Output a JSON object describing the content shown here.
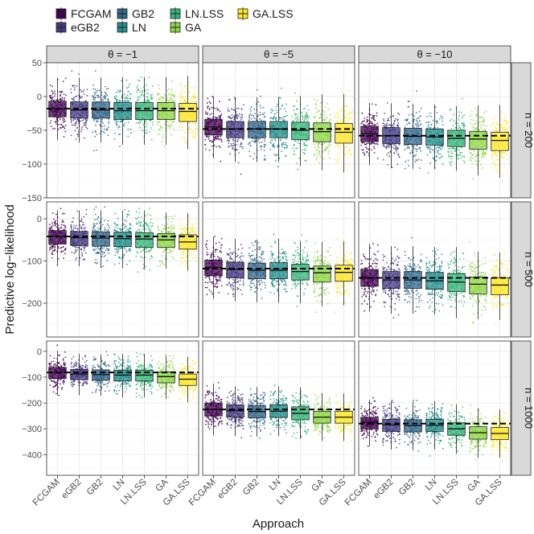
{
  "legend": {
    "items": [
      {
        "label": "FCGAM",
        "color": "#440154"
      },
      {
        "label": "eGB2",
        "color": "#443A83"
      },
      {
        "label": "GB2",
        "color": "#31688E"
      },
      {
        "label": "LN",
        "color": "#21908D"
      },
      {
        "label": "LN.LSS",
        "color": "#35B779"
      },
      {
        "label": "GA",
        "color": "#8FD744"
      },
      {
        "label": "GA.LSS",
        "color": "#FDE725"
      }
    ]
  },
  "chart_data": {
    "type": "box",
    "xlabel": "Approach",
    "ylabel": "Predictive log−likelihood",
    "categories": [
      "FCGAM",
      "eGB2",
      "GB2",
      "LN",
      "LN.LSS",
      "GA",
      "GA.LSS"
    ],
    "facet_columns": [
      "θ = −1",
      "θ = −5",
      "θ = −10"
    ],
    "facet_rows": [
      {
        "label": "n = 200",
        "ylim": [
          -150,
          50
        ],
        "ticks": [
          50,
          0,
          -50,
          -100,
          -150
        ]
      },
      {
        "label": "n = 500",
        "ylim": [
          -280,
          40
        ],
        "ticks": [
          0,
          -100,
          -200
        ]
      },
      {
        "label": "n = 1000",
        "ylim": [
          -480,
          40
        ],
        "ticks": [
          0,
          -100,
          -200,
          -300,
          -400
        ]
      }
    ],
    "panels": [
      {
        "row": 0,
        "col": 0,
        "reference": -18,
        "median": [
          -18,
          -20,
          -20,
          -21,
          -21,
          -21,
          -22
        ],
        "q1": [
          -30,
          -32,
          -32,
          -34,
          -34,
          -34,
          -37
        ],
        "q3": [
          -7,
          -8,
          -8,
          -9,
          -9,
          -9,
          -10
        ],
        "min": [
          -90,
          -85,
          -88,
          -85,
          -88,
          -88,
          -95
        ],
        "max": [
          40,
          38,
          38,
          36,
          36,
          36,
          38
        ]
      },
      {
        "row": 0,
        "col": 1,
        "reference": -48,
        "median": [
          -45,
          -48,
          -48,
          -48,
          -50,
          -52,
          -53
        ],
        "q1": [
          -57,
          -61,
          -61,
          -61,
          -64,
          -67,
          -69
        ],
        "q3": [
          -34,
          -37,
          -37,
          -37,
          -38,
          -39,
          -40
        ],
        "min": [
          -110,
          -115,
          -112,
          -110,
          -118,
          -120,
          -130
        ],
        "max": [
          15,
          12,
          12,
          12,
          12,
          12,
          15
        ]
      },
      {
        "row": 0,
        "col": 2,
        "reference": -58,
        "median": [
          -55,
          -58,
          -59,
          -60,
          -62,
          -63,
          -65
        ],
        "q1": [
          -67,
          -70,
          -71,
          -72,
          -74,
          -78,
          -80
        ],
        "q3": [
          -44,
          -46,
          -47,
          -48,
          -50,
          -52,
          -53
        ],
        "min": [
          -120,
          -125,
          -128,
          -125,
          -130,
          -135,
          -140
        ],
        "max": [
          10,
          10,
          8,
          8,
          8,
          5,
          5
        ]
      },
      {
        "row": 1,
        "col": 0,
        "reference": -42,
        "median": [
          -42,
          -45,
          -46,
          -47,
          -48,
          -50,
          -55
        ],
        "q1": [
          -60,
          -63,
          -65,
          -66,
          -68,
          -68,
          -72
        ],
        "q3": [
          -28,
          -30,
          -31,
          -32,
          -33,
          -35,
          -38
        ],
        "min": [
          -150,
          -155,
          -155,
          -160,
          -160,
          -175,
          -175
        ],
        "max": [
          30,
          28,
          28,
          25,
          25,
          25,
          25
        ]
      },
      {
        "row": 1,
        "col": 1,
        "reference": -118,
        "median": [
          -115,
          -120,
          -122,
          -122,
          -125,
          -128,
          -127
        ],
        "q1": [
          -135,
          -140,
          -142,
          -142,
          -145,
          -150,
          -148
        ],
        "q3": [
          -98,
          -103,
          -105,
          -104,
          -108,
          -112,
          -110
        ],
        "min": [
          -230,
          -240,
          -245,
          -245,
          -250,
          -265,
          -260
        ],
        "max": [
          -20,
          -25,
          -22,
          -20,
          -25,
          -30,
          -28
        ]
      },
      {
        "row": 1,
        "col": 2,
        "reference": -140,
        "median": [
          -140,
          -145,
          -145,
          -147,
          -150,
          -155,
          -157
        ],
        "q1": [
          -160,
          -165,
          -165,
          -167,
          -172,
          -178,
          -180
        ],
        "q3": [
          -120,
          -125,
          -125,
          -127,
          -130,
          -138,
          -140
        ],
        "min": [
          -250,
          -255,
          -255,
          -255,
          -260,
          -265,
          -270
        ],
        "max": [
          -40,
          -45,
          -45,
          -45,
          -50,
          -55,
          -55
        ]
      },
      {
        "row": 2,
        "col": 0,
        "reference": -82,
        "median": [
          -82,
          -88,
          -90,
          -92,
          -92,
          -98,
          -108
        ],
        "q1": [
          -105,
          -110,
          -112,
          -115,
          -115,
          -122,
          -132
        ],
        "q3": [
          -62,
          -70,
          -72,
          -73,
          -73,
          -80,
          -88
        ],
        "min": [
          -210,
          -225,
          -225,
          -225,
          -230,
          -240,
          -250
        ],
        "max": [
          30,
          25,
          25,
          20,
          20,
          15,
          10
        ]
      },
      {
        "row": 2,
        "col": 1,
        "reference": -225,
        "median": [
          -225,
          -230,
          -233,
          -232,
          -240,
          -255,
          -255
        ],
        "q1": [
          -250,
          -255,
          -258,
          -256,
          -265,
          -278,
          -278
        ],
        "q3": [
          -200,
          -207,
          -210,
          -208,
          -215,
          -232,
          -232
        ],
        "min": [
          -370,
          -385,
          -380,
          -380,
          -395,
          -420,
          -420
        ],
        "max": [
          -110,
          -120,
          -120,
          -115,
          -125,
          -140,
          -140
        ]
      },
      {
        "row": 2,
        "col": 2,
        "reference": -280,
        "median": [
          -275,
          -285,
          -288,
          -287,
          -300,
          -315,
          -318
        ],
        "q1": [
          -300,
          -310,
          -312,
          -310,
          -325,
          -340,
          -342
        ],
        "q3": [
          -255,
          -263,
          -265,
          -263,
          -277,
          -292,
          -295
        ],
        "min": [
          -400,
          -420,
          -420,
          -420,
          -440,
          -450,
          -455
        ],
        "max": [
          -180,
          -190,
          -190,
          -190,
          -200,
          -210,
          -215
        ]
      }
    ]
  }
}
